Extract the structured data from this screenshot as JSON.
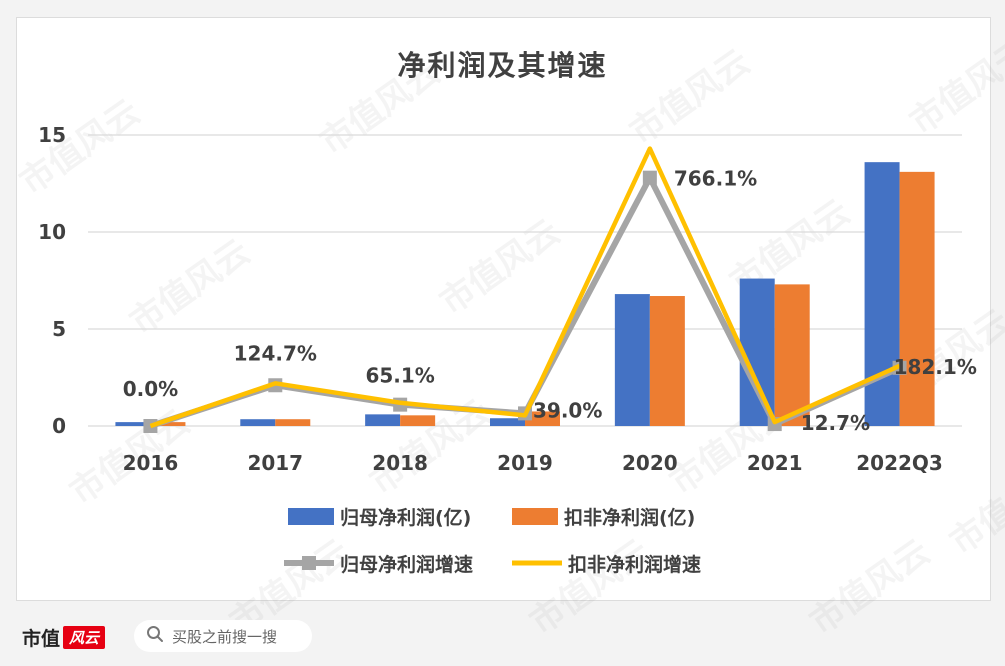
{
  "chart_data": {
    "type": "bar",
    "title": "净利润及其增速",
    "categories": [
      "2016",
      "2017",
      "2018",
      "2019",
      "2020",
      "2021",
      "2022Q3"
    ],
    "ylim": [
      0,
      15
    ],
    "yticks": [
      0,
      5,
      10,
      15
    ],
    "grid": true,
    "legend_position": "bottom",
    "bar_series": [
      {
        "name": "归母净利润(亿)",
        "color": "#4472c4",
        "values": [
          0.2,
          0.35,
          0.6,
          0.4,
          6.8,
          7.6,
          13.6
        ]
      },
      {
        "name": "扣非净利润(亿)",
        "color": "#ed7d31",
        "values": [
          0.2,
          0.35,
          0.55,
          0.75,
          6.7,
          7.3,
          13.1
        ]
      }
    ],
    "line_series": [
      {
        "name": "归母净利润增速",
        "color": "#a5a5a5",
        "marker": "square",
        "values": [
          0.0,
          2.1,
          1.1,
          0.65,
          12.8,
          0.1,
          3.0
        ]
      },
      {
        "name": "扣非净利润增速",
        "color": "#ffc000",
        "values": [
          0.0,
          2.2,
          1.2,
          0.55,
          14.3,
          0.2,
          3.1
        ]
      }
    ],
    "annotations": [
      "0.0%",
      "124.7%",
      "65.1%",
      "39.0%",
      "766.1%",
      "12.7%",
      "182.1%"
    ]
  },
  "watermark_text": "市值风云",
  "footer": {
    "brand_name": "市值",
    "brand_badge": "风云",
    "search_placeholder": "买股之前搜一搜",
    "search_icon": "search-icon"
  }
}
